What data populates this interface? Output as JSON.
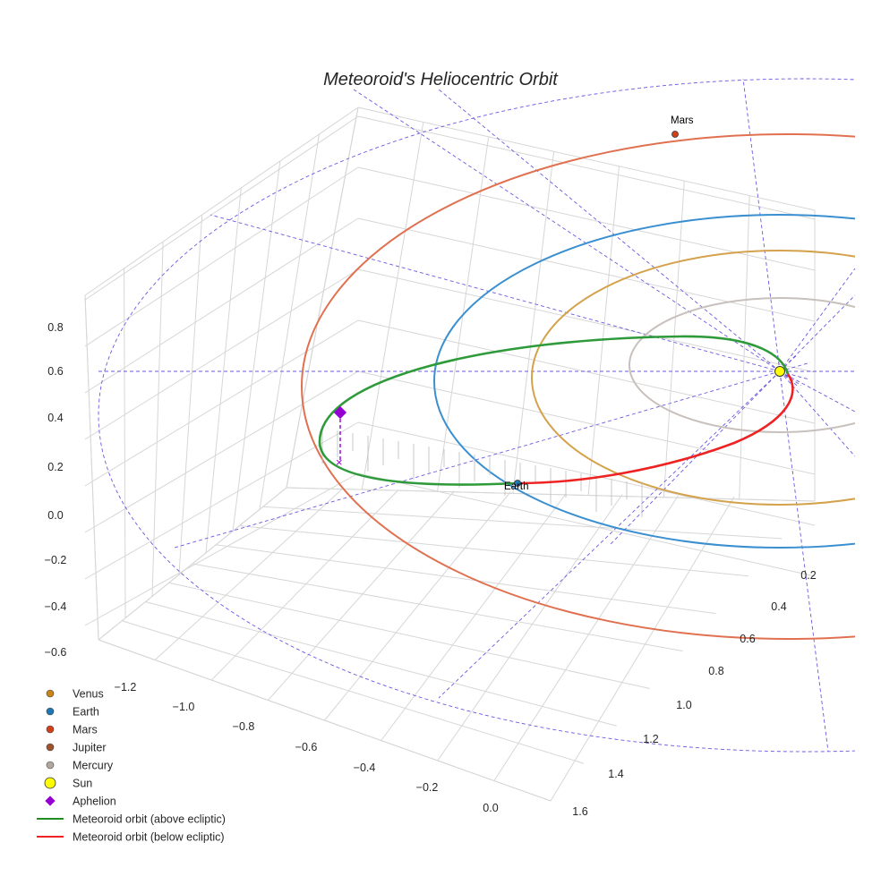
{
  "chart_data": {
    "type": "line",
    "projection": "3d",
    "title": "Meteoroid's Heliocentric Orbit",
    "xlabel": "",
    "ylabel": "",
    "zlabel": "",
    "x_ticks": [
      "−1.2",
      "−1.0",
      "−0.8",
      "−0.6",
      "−0.4",
      "−0.2",
      "0.0"
    ],
    "y_ticks": [
      "0.2",
      "0.4",
      "0.6",
      "0.8",
      "1.0",
      "1.2",
      "1.4",
      "1.6"
    ],
    "z_ticks": [
      "0.8",
      "0.6",
      "0.4",
      "0.2",
      "0.0",
      "−0.2",
      "−0.4",
      "−0.6"
    ],
    "grid": true,
    "legend_position": "bottom-left",
    "legend": [
      {
        "label": "Venus",
        "kind": "dot",
        "color": "#c88418"
      },
      {
        "label": "Earth",
        "kind": "dot",
        "color": "#1f77b4"
      },
      {
        "label": "Mars",
        "kind": "dot",
        "color": "#d2401a"
      },
      {
        "label": "Jupiter",
        "kind": "dot",
        "color": "#a0522d"
      },
      {
        "label": "Mercury",
        "kind": "dot",
        "color": "#b0a8a0"
      },
      {
        "label": "Sun",
        "kind": "sun",
        "color": "#ffff00"
      },
      {
        "label": "Aphelion",
        "kind": "diamond",
        "color": "#9400d3"
      },
      {
        "label": "Meteoroid orbit (above ecliptic)",
        "kind": "line",
        "color": "#228b22"
      },
      {
        "label": "Meteoroid orbit (below ecliptic)",
        "kind": "line",
        "color": "#ee2222"
      }
    ],
    "annotations": [
      "Mars",
      "Earth"
    ],
    "orbit_colors": {
      "mars": "#e07050",
      "earth": "#3a8fd0",
      "venus": "#d4a24c",
      "mercury": "#c8c0bc",
      "grid": "#7b68ee"
    }
  }
}
